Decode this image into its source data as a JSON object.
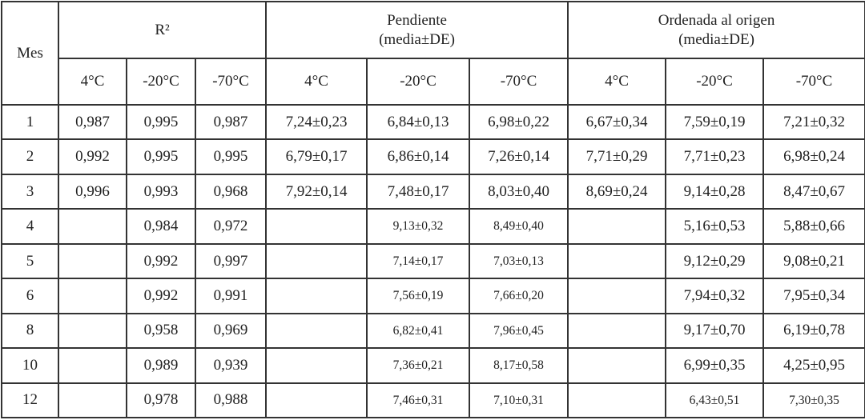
{
  "table": {
    "corner": "Mes",
    "groups": [
      {
        "title": "R²",
        "columns": [
          "4°C",
          "-20°C",
          "-70°C"
        ]
      },
      {
        "title": "Pendiente",
        "subtitle": "(media±DE)",
        "columns": [
          "4°C",
          "-20°C",
          "-70°C"
        ]
      },
      {
        "title": "Ordenada al origen",
        "subtitle": "(media±DE)",
        "columns": [
          "4°C",
          "-20°C",
          "-70°C"
        ]
      }
    ],
    "rows": [
      [
        "1",
        "0,987",
        "0,995",
        "0,987",
        "7,24±0,23",
        "6,84±0,13",
        "6,98±0,22",
        "6,67±0,34",
        "7,59±0,19",
        "7,21±0,32"
      ],
      [
        "2",
        "0,992",
        "0,995",
        "0,995",
        "6,79±0,17",
        "6,86±0,14",
        "7,26±0,14",
        "7,71±0,29",
        "7,71±0,23",
        "6,98±0,24"
      ],
      [
        "3",
        "0,996",
        "0,993",
        "0,968",
        "7,92±0,14",
        "7,48±0,17",
        "8,03±0,40",
        "8,69±0,24",
        "9,14±0,28",
        "8,47±0,67"
      ],
      [
        "4",
        null,
        "0,984",
        "0,972",
        null,
        "9,13±0,32",
        "8,49±0,40",
        null,
        "5,16±0,53",
        "5,88±0,66"
      ],
      [
        "5",
        null,
        "0,992",
        "0,997",
        null,
        "7,14±0,17",
        "7,03±0,13",
        null,
        "9,12±0,29",
        "9,08±0,21"
      ],
      [
        "6",
        null,
        "0,992",
        "0,991",
        null,
        "7,56±0,19",
        "7,66±0,20",
        null,
        "7,94±0,32",
        "7,95±0,34"
      ],
      [
        "8",
        null,
        "0,958",
        "0,969",
        null,
        "6,82±0,41",
        "7,96±0,45",
        null,
        "9,17±0,70",
        "6,19±0,78"
      ],
      [
        "10",
        null,
        "0,989",
        "0,939",
        null,
        "7,36±0,21",
        "8,17±0,58",
        null,
        "6,99±0,35",
        "4,25±0,95"
      ],
      [
        "12",
        null,
        "0,978",
        "0,988",
        null,
        "7,46±0,31",
        "7,10±0,31",
        null,
        "6,43±0,51",
        "7,30±0,35"
      ]
    ]
  }
}
